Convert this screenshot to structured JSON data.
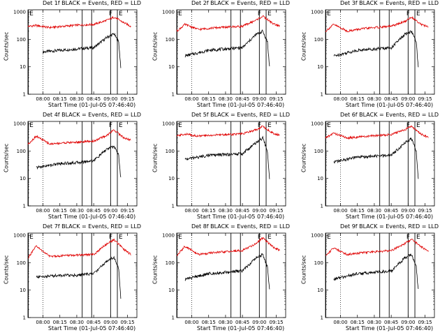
{
  "chart_data": [
    {
      "type": "line",
      "title": "Det 1f BLACK = Events, RED = LLD",
      "xlabel": "Start Time (01-Jul-05 07:46:40)",
      "ylabel": "Counts/sec",
      "xticks": [
        "08:00",
        "08:15",
        "08:30",
        "08:45",
        "09:00",
        "09:15"
      ],
      "yticks": [
        "1",
        "10",
        "100",
        "1000"
      ],
      "ylim": [
        1,
        1200
      ],
      "yscale": "log",
      "markers": [
        "E",
        "F",
        "E"
      ],
      "series": [
        {
          "name": "Events",
          "color": "#000000",
          "points": [
            [
              8.0,
              35
            ],
            [
              8.25,
              40
            ],
            [
              8.5,
              45
            ],
            [
              8.75,
              50
            ],
            [
              8.95,
              120
            ],
            [
              9.05,
              160
            ],
            [
              9.12,
              80
            ],
            [
              9.15,
              10
            ]
          ]
        },
        {
          "name": "LLD",
          "color": "#e00000",
          "points": [
            [
              7.78,
              300
            ],
            [
              7.9,
              320
            ],
            [
              8.1,
              270
            ],
            [
              8.3,
              300
            ],
            [
              8.5,
              330
            ],
            [
              8.75,
              350
            ],
            [
              8.95,
              500
            ],
            [
              9.05,
              650
            ],
            [
              9.2,
              400
            ],
            [
              9.3,
              300
            ]
          ]
        }
      ]
    },
    {
      "type": "line",
      "title": "Det 2f BLACK = Events, RED = LLD",
      "xlabel": "Start Time (01-Jul-05 07:46:40)",
      "ylabel": "Counts/sec",
      "xticks": [
        "08:00",
        "08:15",
        "08:30",
        "08:45",
        "09:00",
        "09:15"
      ],
      "yticks": [
        "1",
        "10",
        "100",
        "1000"
      ],
      "ylim": [
        1,
        1200
      ],
      "yscale": "log",
      "markers": [
        "E",
        "F",
        "E"
      ],
      "series": [
        {
          "name": "Events",
          "color": "#000000",
          "points": [
            [
              7.9,
              25
            ],
            [
              8.25,
              40
            ],
            [
              8.5,
              45
            ],
            [
              8.75,
              50
            ],
            [
              8.95,
              150
            ],
            [
              9.05,
              200
            ],
            [
              9.12,
              80
            ],
            [
              9.15,
              10
            ]
          ]
        },
        {
          "name": "LLD",
          "color": "#e00000",
          "points": [
            [
              7.78,
              200
            ],
            [
              7.9,
              350
            ],
            [
              8.1,
              230
            ],
            [
              8.3,
              260
            ],
            [
              8.5,
              280
            ],
            [
              8.75,
              300
            ],
            [
              8.95,
              500
            ],
            [
              9.05,
              700
            ],
            [
              9.2,
              380
            ],
            [
              9.3,
              300
            ]
          ]
        }
      ]
    },
    {
      "type": "line",
      "title": "Det 3f BLACK = Events, RED = LLD",
      "xlabel": "Start Time (01-Jul-05 07:46:40)",
      "ylabel": "Counts/sec",
      "xticks": [
        "08:00",
        "08:15",
        "08:30",
        "08:45",
        "09:00",
        "09:15"
      ],
      "yticks": [
        "1",
        "10",
        "100",
        "1000"
      ],
      "ylim": [
        1,
        1200
      ],
      "yscale": "log",
      "markers": [
        "E",
        "F",
        "E"
      ],
      "series": [
        {
          "name": "Events",
          "color": "#000000",
          "points": [
            [
              7.9,
              25
            ],
            [
              8.25,
              40
            ],
            [
              8.5,
              45
            ],
            [
              8.75,
              50
            ],
            [
              8.95,
              150
            ],
            [
              9.05,
              200
            ],
            [
              9.12,
              80
            ],
            [
              9.15,
              10
            ]
          ]
        },
        {
          "name": "LLD",
          "color": "#e00000",
          "points": [
            [
              7.78,
              200
            ],
            [
              7.9,
              350
            ],
            [
              8.1,
              200
            ],
            [
              8.3,
              240
            ],
            [
              8.5,
              270
            ],
            [
              8.75,
              300
            ],
            [
              8.95,
              450
            ],
            [
              9.05,
              650
            ],
            [
              9.2,
              350
            ],
            [
              9.3,
              280
            ]
          ]
        }
      ]
    },
    {
      "type": "line",
      "title": "Det 4f BLACK = Events, RED = LLD",
      "xlabel": "Start Time (01-Jul-05 07:46:40)",
      "ylabel": "Counts/sec",
      "xticks": [
        "08:00",
        "08:15",
        "08:30",
        "08:45",
        "09:00",
        "09:15"
      ],
      "yticks": [
        "1",
        "10",
        "100",
        "1000"
      ],
      "ylim": [
        1,
        1200
      ],
      "yscale": "log",
      "markers": [
        "E",
        "F",
        "E"
      ],
      "series": [
        {
          "name": "Events",
          "color": "#000000",
          "points": [
            [
              7.9,
              25
            ],
            [
              8.25,
              35
            ],
            [
              8.5,
              38
            ],
            [
              8.75,
              45
            ],
            [
              8.95,
              120
            ],
            [
              9.05,
              150
            ],
            [
              9.12,
              70
            ],
            [
              9.15,
              10
            ]
          ]
        },
        {
          "name": "LLD",
          "color": "#e00000",
          "points": [
            [
              7.78,
              180
            ],
            [
              7.9,
              350
            ],
            [
              8.1,
              180
            ],
            [
              8.3,
              200
            ],
            [
              8.5,
              210
            ],
            [
              8.75,
              230
            ],
            [
              8.95,
              380
            ],
            [
              9.05,
              600
            ],
            [
              9.2,
              300
            ],
            [
              9.3,
              250
            ]
          ]
        }
      ]
    },
    {
      "type": "line",
      "title": "Det 5f BLACK = Events, RED = LLD",
      "xlabel": "Start Time (01-Jul-05 07:46:40)",
      "ylabel": "Counts/sec",
      "xticks": [
        "08:00",
        "08:15",
        "08:30",
        "08:45",
        "09:00",
        "09:15"
      ],
      "yticks": [
        "1",
        "10",
        "100",
        "1000"
      ],
      "ylim": [
        1,
        1200
      ],
      "yscale": "log",
      "markers": [
        "E",
        "F",
        "E"
      ],
      "series": [
        {
          "name": "Events",
          "color": "#000000",
          "points": [
            [
              7.9,
              50
            ],
            [
              8.25,
              70
            ],
            [
              8.5,
              75
            ],
            [
              8.75,
              80
            ],
            [
              8.95,
              200
            ],
            [
              9.05,
              300
            ],
            [
              9.12,
              100
            ],
            [
              9.15,
              10
            ]
          ]
        },
        {
          "name": "LLD",
          "color": "#e00000",
          "points": [
            [
              7.78,
              350
            ],
            [
              7.9,
              420
            ],
            [
              8.1,
              350
            ],
            [
              8.3,
              380
            ],
            [
              8.5,
              400
            ],
            [
              8.75,
              420
            ],
            [
              8.95,
              600
            ],
            [
              9.05,
              800
            ],
            [
              9.2,
              450
            ],
            [
              9.3,
              380
            ]
          ]
        }
      ]
    },
    {
      "type": "line",
      "title": "Det 6f BLACK = Events, RED = LLD",
      "xlabel": "Start Time (01-Jul-05 07:46:40)",
      "ylabel": "Counts/sec",
      "xticks": [
        "08:00",
        "08:15",
        "08:30",
        "08:45",
        "09:00",
        "09:15"
      ],
      "yticks": [
        "1",
        "10",
        "100",
        "1000"
      ],
      "ylim": [
        1,
        1200
      ],
      "yscale": "log",
      "markers": [
        "E",
        "F",
        "E"
      ],
      "series": [
        {
          "name": "Events",
          "color": "#000000",
          "points": [
            [
              7.9,
              40
            ],
            [
              8.25,
              60
            ],
            [
              8.5,
              65
            ],
            [
              8.75,
              70
            ],
            [
              8.95,
              200
            ],
            [
              9.05,
              280
            ],
            [
              9.12,
              100
            ],
            [
              9.15,
              10
            ]
          ]
        },
        {
          "name": "LLD",
          "color": "#e00000",
          "points": [
            [
              7.78,
              300
            ],
            [
              7.9,
              450
            ],
            [
              8.1,
              300
            ],
            [
              8.3,
              330
            ],
            [
              8.5,
              360
            ],
            [
              8.75,
              400
            ],
            [
              8.95,
              600
            ],
            [
              9.05,
              800
            ],
            [
              9.2,
              400
            ],
            [
              9.3,
              320
            ]
          ]
        }
      ]
    },
    {
      "type": "line",
      "title": "Det 7f BLACK = Events, RED = LLD",
      "xlabel": "Start Time (01-Jul-05 07:46:40)",
      "ylabel": "Counts/sec",
      "xticks": [
        "08:00",
        "08:15",
        "08:30",
        "08:45",
        "09:00",
        "09:15"
      ],
      "yticks": [
        "1",
        "10",
        "100",
        "1000"
      ],
      "ylim": [
        1,
        1200
      ],
      "yscale": "log",
      "markers": [
        "E",
        "F",
        "E"
      ],
      "series": [
        {
          "name": "Events",
          "color": "#000000",
          "points": [
            [
              7.9,
              30
            ],
            [
              8.25,
              35
            ],
            [
              8.5,
              35
            ],
            [
              8.75,
              40
            ],
            [
              8.95,
              120
            ],
            [
              9.05,
              160
            ],
            [
              9.12,
              60
            ],
            [
              9.15,
              5
            ]
          ]
        },
        {
          "name": "LLD",
          "color": "#e00000",
          "points": [
            [
              7.78,
              150
            ],
            [
              7.9,
              400
            ],
            [
              8.1,
              170
            ],
            [
              8.3,
              180
            ],
            [
              8.5,
              190
            ],
            [
              8.75,
              200
            ],
            [
              8.95,
              500
            ],
            [
              9.05,
              700
            ],
            [
              9.2,
              300
            ],
            [
              9.3,
              200
            ]
          ]
        }
      ]
    },
    {
      "type": "line",
      "title": "Det 8f BLACK = Events, RED = LLD",
      "xlabel": "Start Time (01-Jul-05 07:46:40)",
      "ylabel": "Counts/sec",
      "xticks": [
        "08:00",
        "08:15",
        "08:30",
        "08:45",
        "09:00",
        "09:15"
      ],
      "yticks": [
        "1",
        "10",
        "100",
        "1000"
      ],
      "ylim": [
        1,
        1200
      ],
      "yscale": "log",
      "markers": [
        "E",
        "F",
        "E"
      ],
      "series": [
        {
          "name": "Events",
          "color": "#000000",
          "points": [
            [
              7.9,
              25
            ],
            [
              8.25,
              40
            ],
            [
              8.5,
              45
            ],
            [
              8.75,
              50
            ],
            [
              8.95,
              150
            ],
            [
              9.05,
              200
            ],
            [
              9.12,
              70
            ],
            [
              9.15,
              10
            ]
          ]
        },
        {
          "name": "LLD",
          "color": "#e00000",
          "points": [
            [
              7.78,
              180
            ],
            [
              7.9,
              400
            ],
            [
              8.1,
              200
            ],
            [
              8.3,
              230
            ],
            [
              8.5,
              250
            ],
            [
              8.75,
              280
            ],
            [
              8.95,
              500
            ],
            [
              9.05,
              800
            ],
            [
              9.2,
              380
            ],
            [
              9.3,
              280
            ]
          ]
        }
      ]
    },
    {
      "type": "line",
      "title": "Det 9f BLACK = Events, RED = LLD",
      "xlabel": "Start Time (01-Jul-05 07:46:40)",
      "ylabel": "Counts/sec",
      "xticks": [
        "08:00",
        "08:15",
        "08:30",
        "08:45",
        "09:00",
        "09:15"
      ],
      "yticks": [
        "1",
        "10",
        "100",
        "1000"
      ],
      "ylim": [
        1,
        1200
      ],
      "yscale": "log",
      "markers": [
        "E",
        "F",
        "E"
      ],
      "series": [
        {
          "name": "Events",
          "color": "#000000",
          "points": [
            [
              7.9,
              25
            ],
            [
              8.25,
              40
            ],
            [
              8.5,
              45
            ],
            [
              8.75,
              50
            ],
            [
              8.95,
              150
            ],
            [
              9.05,
              200
            ],
            [
              9.12,
              70
            ],
            [
              9.15,
              10
            ]
          ]
        },
        {
          "name": "LLD",
          "color": "#e00000",
          "points": [
            [
              7.78,
              180
            ],
            [
              7.9,
              350
            ],
            [
              8.1,
              200
            ],
            [
              8.3,
              230
            ],
            [
              8.5,
              250
            ],
            [
              8.75,
              280
            ],
            [
              8.95,
              500
            ],
            [
              9.05,
              700
            ],
            [
              9.2,
              380
            ],
            [
              9.3,
              250
            ]
          ]
        }
      ]
    }
  ]
}
